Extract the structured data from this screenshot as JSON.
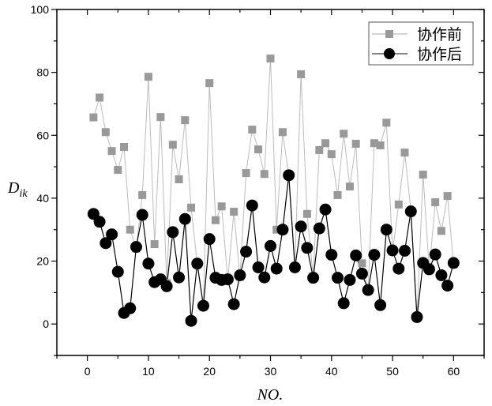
{
  "chart_data": {
    "type": "line",
    "title": "",
    "xlabel": "NO.",
    "ylabel_main": "D",
    "ylabel_sub": "ik",
    "xlim": [
      -5,
      65
    ],
    "ylim": [
      -10,
      100
    ],
    "xticks": [
      0,
      10,
      20,
      30,
      40,
      50,
      60
    ],
    "yticks": [
      0,
      20,
      40,
      60,
      80,
      100
    ],
    "grid": false,
    "legend_position": "top-right",
    "x": [
      1,
      2,
      3,
      4,
      5,
      6,
      7,
      8,
      9,
      10,
      11,
      12,
      13,
      14,
      15,
      16,
      17,
      18,
      19,
      20,
      21,
      22,
      23,
      24,
      25,
      26,
      27,
      28,
      29,
      30,
      31,
      32,
      33,
      34,
      35,
      36,
      37,
      38,
      39,
      40,
      41,
      42,
      43,
      44,
      45,
      46,
      47,
      48,
      49,
      50,
      51,
      52,
      53,
      54,
      55,
      56,
      57,
      58,
      59,
      60
    ],
    "series": [
      {
        "name": "协作前",
        "marker": "square",
        "color": "#999999",
        "values": [
          65.7,
          72,
          61,
          55,
          49,
          56.3,
          30,
          24,
          41,
          78.6,
          25.4,
          65.8,
          13,
          57,
          46,
          64.8,
          37,
          19,
          6,
          76.6,
          33,
          37.4,
          14,
          35.7,
          15,
          48,
          61.8,
          55.5,
          47.7,
          84.4,
          30,
          61,
          47,
          18,
          79.4,
          35,
          15,
          55.3,
          57.5,
          54,
          41,
          60.5,
          43.7,
          57.3,
          19.3,
          11,
          57.5,
          56.8,
          64,
          23,
          38,
          54.5,
          36,
          2,
          47.5,
          17,
          38.7,
          29.6,
          40.7,
          19
        ]
      },
      {
        "name": "协作后",
        "marker": "circle",
        "color": "#000000",
        "values": [
          35,
          32.5,
          25.7,
          28.5,
          16.6,
          3.5,
          5,
          24.5,
          34.7,
          19.2,
          13.3,
          14.2,
          12,
          29.2,
          14.8,
          33.4,
          1,
          19.2,
          5.8,
          27,
          14.7,
          14,
          14.2,
          6.3,
          15.5,
          23,
          37.7,
          18,
          14.8,
          24.8,
          17.6,
          30,
          47.3,
          18,
          31,
          24.2,
          14.7,
          30.4,
          36.4,
          22,
          14.7,
          6.6,
          14,
          21.8,
          16,
          10.8,
          22,
          6,
          30,
          23.4,
          17.6,
          23.3,
          35.8,
          2.2,
          19.4,
          17.4,
          22.1,
          15.5,
          12.2,
          19.4
        ]
      }
    ]
  }
}
